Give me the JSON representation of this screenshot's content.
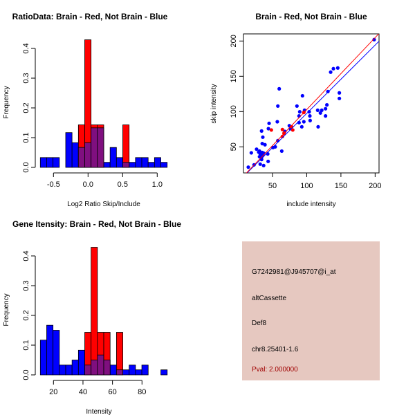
{
  "chart_data": [
    {
      "type": "bar",
      "subtype": "overlaid-histogram",
      "title": "RatioData: Brain - Red, Not Brain - Blue",
      "xlabel": "Log2 Ratio Skip/Include",
      "ylabel": "Frequency",
      "xlim": [
        -0.72,
        1.2
      ],
      "ylim": [
        0,
        0.43
      ],
      "xticks": [
        "-0.5",
        "0.0",
        "0.5",
        "1.0"
      ],
      "xtick_values": [
        -0.5,
        0,
        0.5,
        1.0
      ],
      "yticks": [
        "0.0",
        "0.1",
        "0.2",
        "0.3",
        "0.4"
      ],
      "ytick_values": [
        0,
        0.1,
        0.2,
        0.3,
        0.4
      ],
      "bin_start": -0.69,
      "bin_width": 0.0917,
      "series": [
        {
          "name": "Not Brain",
          "color": "#0000ff",
          "values": [
            0.033,
            0.033,
            0.033,
            0,
            0.117,
            0.083,
            0.067,
            0.083,
            0.133,
            0.133,
            0.017,
            0.067,
            0.033,
            0.017,
            0.017,
            0.033,
            0.033,
            0.017,
            0.033,
            0.017
          ]
        },
        {
          "name": "Brain",
          "color": "#ff0000",
          "values": [
            0,
            0,
            0,
            0,
            0,
            0,
            0.143,
            0.429,
            0.143,
            0.143,
            0,
            0,
            0,
            0.143,
            0,
            0,
            0,
            0,
            0,
            0
          ]
        }
      ],
      "overlap_color": "#7f0f7f"
    },
    {
      "type": "scatter",
      "title": "Brain - Red, Not Brain - Blue",
      "xlabel": "include intensity",
      "ylabel": "skip intensity",
      "xlim": [
        7.4,
        206
      ],
      "ylim": [
        13,
        210
      ],
      "xticks": [
        "50",
        "100",
        "150",
        "200"
      ],
      "xtick_values": [
        50,
        100,
        150,
        200
      ],
      "yticks": [
        "50",
        "100",
        "150",
        "200"
      ],
      "ytick_values": [
        50,
        100,
        150,
        200
      ],
      "series": [
        {
          "name": "Not Brain",
          "color": "#0000ff",
          "points": [
            [
              14.6,
              21.2
            ],
            [
              19,
              41.5
            ],
            [
              23,
              24.5
            ],
            [
              26.7,
              46.7
            ],
            [
              29.8,
              42.5
            ],
            [
              32,
              25.5
            ],
            [
              34,
              72.5
            ],
            [
              35.8,
              63.7
            ],
            [
              35,
              54.6
            ],
            [
              39,
              53
            ],
            [
              37,
              23.5
            ],
            [
              31,
              44
            ],
            [
              32,
              40
            ],
            [
              33,
              37
            ],
            [
              34,
              35
            ],
            [
              35,
              42
            ],
            [
              36,
              38
            ],
            [
              34,
              32
            ],
            [
              37,
              41
            ],
            [
              31,
              36
            ],
            [
              43.6,
              29.4
            ],
            [
              43,
              40
            ],
            [
              44,
              75.8
            ],
            [
              45,
              83.3
            ],
            [
              50.7,
              49
            ],
            [
              54,
              50
            ],
            [
              57.8,
              58.8
            ],
            [
              57,
              85.6
            ],
            [
              57.8,
              107.8
            ],
            [
              59.8,
              132.3
            ],
            [
              63.5,
              44
            ],
            [
              68,
              71.9
            ],
            [
              74.6,
              80
            ],
            [
              76,
              75.8
            ],
            [
              85.7,
              107.8
            ],
            [
              89.8,
              99.7
            ],
            [
              88.8,
              93.8
            ],
            [
              88.8,
              84.3
            ],
            [
              92.8,
              78.4
            ],
            [
              93.8,
              122.4
            ],
            [
              95.8,
              85.6
            ],
            [
              96.8,
              101.9
            ],
            [
              103.6,
              99.7
            ],
            [
              104.6,
              93.8
            ],
            [
              105,
              87.3
            ],
            [
              116,
              101.9
            ],
            [
              116.7,
              78.4
            ],
            [
              120,
              98
            ],
            [
              122,
              101.9
            ],
            [
              127.5,
              93.8
            ],
            [
              127.5,
              104
            ],
            [
              129.5,
              109.5
            ],
            [
              131,
              128.4
            ],
            [
              135,
              155.9
            ],
            [
              139,
              160.8
            ],
            [
              145.4,
              161.8
            ],
            [
              147.7,
              126.5
            ],
            [
              147.7,
              118.6
            ],
            [
              198.6,
              202
            ]
          ]
        },
        {
          "name": "Brain",
          "color": "#ff0000",
          "points": [
            [
              48.3,
              73.9
            ],
            [
              64.5,
              74.5
            ],
            [
              64.5,
              64.7
            ],
            [
              66.8,
              69.3
            ],
            [
              78,
              78.4
            ],
            [
              79.6,
              73.9
            ],
            [
              95.8,
              98.7
            ]
          ]
        }
      ],
      "fit_lines": [
        {
          "name": "Not Brain fit",
          "color": "#0000ff",
          "slope": 0.968,
          "intercept": 0.6
        },
        {
          "name": "Brain fit",
          "color": "#ff0000",
          "slope": 1.02,
          "intercept": 0.8
        }
      ]
    },
    {
      "type": "bar",
      "subtype": "overlaid-histogram",
      "title": "Gene Itensity: Brain - Red, Not Brain - Blue",
      "xlabel": "Intensity",
      "ylabel": "Frequency",
      "xlim": [
        9,
        100
      ],
      "ylim": [
        0,
        0.43
      ],
      "xticks": [
        "20",
        "40",
        "60",
        "80"
      ],
      "xtick_values": [
        20,
        40,
        60,
        80
      ],
      "yticks": [
        "0.0",
        "0.1",
        "0.2",
        "0.3",
        "0.4"
      ],
      "ytick_values": [
        0,
        0.1,
        0.2,
        0.3,
        0.4
      ],
      "bin_start": 11.1,
      "bin_width": 4.3,
      "series": [
        {
          "name": "Not Brain",
          "color": "#0000ff",
          "values": [
            0.117,
            0.167,
            0.15,
            0.033,
            0.033,
            0.05,
            0.083,
            0.033,
            0.05,
            0.067,
            0.05,
            0.033,
            0.017,
            0.017,
            0.033,
            0.017,
            0.033,
            0,
            0,
            0.017
          ]
        },
        {
          "name": "Brain",
          "color": "#ff0000",
          "values": [
            0,
            0,
            0,
            0,
            0,
            0,
            0,
            0.143,
            0.429,
            0.143,
            0.143,
            0,
            0.143,
            0,
            0,
            0,
            0,
            0,
            0,
            0
          ]
        }
      ],
      "overlap_color": "#7f0f7f"
    }
  ],
  "info_panel": {
    "background": "#e6c8c0",
    "probe_id": "G7242981@J945707@i_at",
    "event_type": "altCassette",
    "gene": "Def8",
    "location": "chr8.25401-1.6",
    "pval": "Pval: 2.000000",
    "pval_color": "#a00000"
  }
}
